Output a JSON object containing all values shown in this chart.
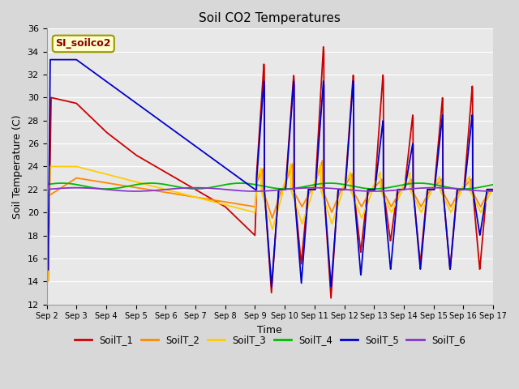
{
  "title": "Soil CO2 Temperatures",
  "xlabel": "Time",
  "ylabel": "Soil Temperature (C)",
  "ylim": [
    12,
    36
  ],
  "xlim": [
    0,
    15
  ],
  "annotation": "SI_soilco2",
  "fig_facecolor": "#d8d8d8",
  "ax_facecolor": "#e8e8e8",
  "legend_colors": [
    "#cc0000",
    "#ff8800",
    "#ffcc00",
    "#00bb00",
    "#0000cc",
    "#8833cc"
  ],
  "legend_labels": [
    "SoilT_1",
    "SoilT_2",
    "SoilT_3",
    "SoilT_4",
    "SoilT_5",
    "SoilT_6"
  ],
  "tick_labels": [
    "Sep 2",
    "Sep 3",
    "Sep 4",
    "Sep 5",
    "Sep 6",
    "Sep 7",
    "Sep 8",
    "Sep 9",
    "Sep 10",
    "Sep 11",
    "Sep 12",
    "Sep 13",
    "Sep 14",
    "Sep 15",
    "Sep 16",
    "Sep 17"
  ],
  "yticks": [
    12,
    14,
    16,
    18,
    20,
    22,
    24,
    26,
    28,
    30,
    32,
    34,
    36
  ]
}
